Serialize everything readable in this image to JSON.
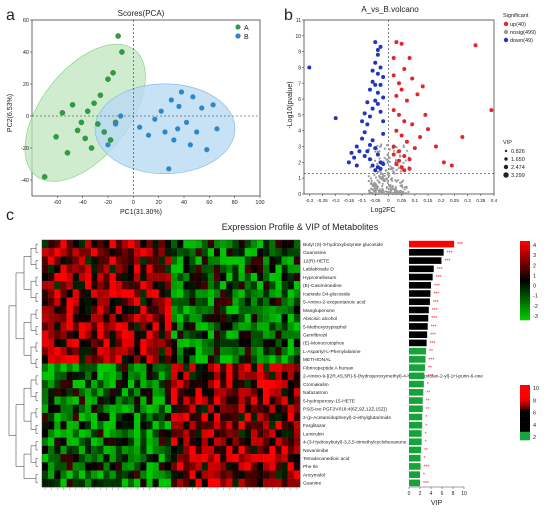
{
  "panel_labels": {
    "a": "a",
    "b": "b",
    "c": "c"
  },
  "chart_data": [
    {
      "type": "scatter",
      "panel": "a",
      "title": "Scores(PCA)",
      "xlabel": "PC1(31.30%)",
      "ylabel": "PC2(6.53%)",
      "xlim": [
        -80,
        100
      ],
      "ylim": [
        -50,
        60
      ],
      "xticks": [
        -60,
        -40,
        -20,
        0,
        20,
        40,
        60,
        80,
        100
      ],
      "yticks": [
        -40,
        -20,
        0,
        20,
        40,
        60
      ],
      "legend": {
        "placement": "top-right",
        "entries": [
          "A",
          "B"
        ]
      },
      "colors": {
        "A": "#2e9e44",
        "B": "#2f86c8",
        "A_fill": "#bfe6bf",
        "B_fill": "#b9daf3"
      },
      "series": [
        {
          "name": "A",
          "points": [
            [
              -70,
              -38
            ],
            [
              -61,
              -13
            ],
            [
              -56,
              2
            ],
            [
              -52,
              -23
            ],
            [
              -48,
              7
            ],
            [
              -44,
              -9
            ],
            [
              -41,
              -4
            ],
            [
              -38,
              -14
            ],
            [
              -36,
              3
            ],
            [
              -33,
              -20
            ],
            [
              -31,
              8
            ],
            [
              -28,
              -5
            ],
            [
              -26,
              13
            ],
            [
              -23,
              -10
            ],
            [
              -20,
              23
            ],
            [
              -18,
              -15
            ],
            [
              -16,
              27
            ],
            [
              -14,
              -4
            ],
            [
              -12,
              50
            ],
            [
              -9,
              40
            ]
          ]
        },
        {
          "name": "B",
          "points": [
            [
              -20,
              -18
            ],
            [
              -14,
              -5
            ],
            [
              -10,
              0
            ],
            [
              5,
              -7
            ],
            [
              12,
              -12
            ],
            [
              17,
              -2
            ],
            [
              22,
              3
            ],
            [
              25,
              -10
            ],
            [
              28,
              -33
            ],
            [
              30,
              10
            ],
            [
              32,
              -15
            ],
            [
              35,
              -8
            ],
            [
              36,
              6
            ],
            [
              38,
              15
            ],
            [
              42,
              -4
            ],
            [
              45,
              -18
            ],
            [
              47,
              12
            ],
            [
              50,
              -10
            ],
            [
              54,
              5
            ],
            [
              58,
              -21
            ],
            [
              63,
              7
            ],
            [
              66,
              -8
            ]
          ]
        }
      ]
    },
    {
      "type": "scatter",
      "panel": "b",
      "title": "A_vs_B.volcano",
      "xlabel": "Log2FC",
      "ylabel": "-Log10(pvalue)",
      "xlim": [
        -0.32,
        0.4
      ],
      "ylim": [
        0,
        11
      ],
      "xticks": [
        -0.3,
        -0.25,
        -0.2,
        -0.15,
        -0.1,
        -0.05,
        0,
        0.05,
        0.1,
        0.15,
        0.2,
        0.25,
        0.3,
        0.35,
        0.4
      ],
      "xtick_labels": [
        "-0.3",
        "-0.25",
        "-0.2",
        "-0.15",
        "-0.1",
        "-0.05",
        "0",
        "0.05",
        "0.1",
        "0.15",
        "0.2",
        "0.25",
        "0.3",
        "0.35",
        "0.4"
      ],
      "yticks": [
        0,
        1,
        2,
        3,
        4,
        5,
        6,
        7,
        8,
        9,
        10,
        11
      ],
      "threshold_y": 1.3,
      "threshold_x": 0,
      "legend": {
        "title": "Significant",
        "entries": [
          "up(40)",
          "nosig(499)",
          "down(49)"
        ],
        "colors": {
          "up": "#e3262b",
          "nosig": "#9a9a9a",
          "down": "#2034c0"
        },
        "size_title": "VIP",
        "size_entries": [
          "0.826",
          "1.650",
          "2.474",
          "3.299"
        ]
      },
      "up_points": [
        [
          0.02,
          8.6
        ],
        [
          0.03,
          9.6
        ],
        [
          0.05,
          9.5
        ],
        [
          0.06,
          7.9
        ],
        [
          0.02,
          7.5
        ],
        [
          0.04,
          7.0
        ],
        [
          0.08,
          8.6
        ],
        [
          0.03,
          6.2
        ],
        [
          0.05,
          6.6
        ],
        [
          0.07,
          5.9
        ],
        [
          0.02,
          5.3
        ],
        [
          0.04,
          5.0
        ],
        [
          0.06,
          4.6
        ],
        [
          0.09,
          4.4
        ],
        [
          0.03,
          4.0
        ],
        [
          0.05,
          3.7
        ],
        [
          0.07,
          3.3
        ],
        [
          0.02,
          3.0
        ],
        [
          0.04,
          2.7
        ],
        [
          0.06,
          2.4
        ],
        [
          0.08,
          2.2
        ],
        [
          0.03,
          1.9
        ],
        [
          0.05,
          1.7
        ],
        [
          0.1,
          2.9
        ],
        [
          0.12,
          3.6
        ],
        [
          0.15,
          4.1
        ],
        [
          0.18,
          3.0
        ],
        [
          0.21,
          2.0
        ],
        [
          0.24,
          1.8
        ],
        [
          0.28,
          3.6
        ],
        [
          0.33,
          9.4
        ],
        [
          0.39,
          5.3
        ],
        [
          0.11,
          6.3
        ],
        [
          0.13,
          6.8
        ],
        [
          0.09,
          7.3
        ],
        [
          0.14,
          5.0
        ],
        [
          0.02,
          2.5
        ],
        [
          0.04,
          2.1
        ],
        [
          0.06,
          1.5
        ],
        [
          0.08,
          1.6
        ]
      ],
      "down_points": [
        [
          -0.3,
          8.0
        ],
        [
          -0.2,
          4.8
        ],
        [
          -0.14,
          2.6
        ],
        [
          -0.12,
          3.0
        ],
        [
          -0.1,
          3.5
        ],
        [
          -0.09,
          3.9
        ],
        [
          -0.08,
          4.4
        ],
        [
          -0.07,
          4.9
        ],
        [
          -0.06,
          5.4
        ],
        [
          -0.05,
          5.9
        ],
        [
          -0.04,
          6.4
        ],
        [
          -0.03,
          6.9
        ],
        [
          -0.02,
          7.4
        ],
        [
          -0.06,
          7.8
        ],
        [
          -0.05,
          8.3
        ],
        [
          -0.04,
          8.8
        ],
        [
          -0.03,
          9.3
        ],
        [
          -0.05,
          9.6
        ],
        [
          -0.04,
          9.1
        ],
        [
          -0.07,
          6.6
        ],
        [
          -0.08,
          5.8
        ],
        [
          -0.09,
          5.1
        ],
        [
          -0.1,
          4.6
        ],
        [
          -0.06,
          3.4
        ],
        [
          -0.05,
          2.9
        ],
        [
          -0.04,
          2.5
        ],
        [
          -0.03,
          2.0
        ],
        [
          -0.07,
          2.2
        ],
        [
          -0.08,
          2.7
        ],
        [
          -0.02,
          3.8
        ],
        [
          -0.02,
          4.6
        ],
        [
          -0.03,
          5.2
        ],
        [
          -0.04,
          5.7
        ],
        [
          -0.02,
          6.1
        ],
        [
          -0.05,
          6.9
        ],
        [
          -0.06,
          7.1
        ],
        [
          -0.04,
          7.6
        ],
        [
          -0.03,
          8.0
        ],
        [
          -0.07,
          3.1
        ],
        [
          -0.09,
          2.4
        ],
        [
          -0.11,
          2.7
        ],
        [
          -0.13,
          2.3
        ],
        [
          -0.15,
          2.0
        ],
        [
          -0.12,
          1.8
        ],
        [
          -0.03,
          1.6
        ],
        [
          -0.02,
          1.9
        ],
        [
          -0.04,
          1.7
        ],
        [
          -0.05,
          1.5
        ],
        [
          -0.06,
          1.8
        ]
      ]
    },
    {
      "type": "heatmap",
      "panel": "c",
      "title": "Expression Profile & VIP of Metabolites",
      "rows": [
        "Butyl (S)-3-hydroxybutyrate glucoside",
        "Guanosine",
        "12(R)-HETE",
        "Lablaboside D",
        "Hypromellosum",
        "(E)-Casimiroedine",
        "Icariside D4-glucoside",
        "5-Amino-2-oxopentanoic acid",
        "Manglupenone",
        "Abscisic alcohol",
        "5-Methoxytryptophol",
        "Gemfibrozil",
        "(E)-Monocrotophos",
        "L-Aspartyl-L-Phenylalanine",
        "METHIONAL",
        "Fibrinopeptide A human",
        "2-Amino-9-[(2R,4S,5R)-5-(hydroperoxymethyl)-4-hydroxyoxolan-2-yl]-1H-purin-6-one",
        "Cromakalim",
        "Nafazatrom",
        "5-hydroperoxy-15-HETE",
        "PS(5-iso PGF2VI/18:4(6Z,9Z,12Z,15Z))",
        "2-(p-Acetamidophenyl)-2-ethylglutarimide",
        "Farglitazar",
        "Lumirubin",
        "4-(3-Hydroxybutyl)-3,3,5-trimethylcyclohexanone",
        "Nevanimibe",
        "Tetradecanedioic acid",
        "Phe Ile",
        "Ancymidol",
        "Guanine"
      ],
      "n_samples": 42,
      "expression_colorbar": {
        "ticks": [
          "4",
          "3",
          "2",
          "1",
          "0",
          "-1",
          "-2",
          "-3"
        ],
        "colors": [
          "#ff0000",
          "#000000",
          "#00c000"
        ]
      },
      "vip": [
        8.2,
        6.3,
        5.9,
        4.5,
        4.3,
        4.0,
        3.9,
        3.8,
        3.6,
        3.5,
        3.4,
        3.3,
        3.2,
        3.1,
        3.0,
        2.9,
        2.8,
        2.7,
        2.6,
        2.5,
        2.5,
        2.4,
        2.4,
        2.3,
        2.3,
        2.2,
        2.1,
        2.1,
        2.0,
        2.0
      ],
      "significance": [
        "***",
        "***",
        "***",
        "***",
        "***",
        "***",
        "***",
        "***",
        "***",
        "***",
        "***",
        "***",
        "***",
        "**",
        "***",
        "**",
        "***",
        "*",
        "**",
        "**",
        "**",
        "*",
        "*",
        "*",
        "*",
        "**",
        "*",
        "***",
        "*",
        "***"
      ],
      "vip_axis": {
        "label": "VIP",
        "ticks": [
          0,
          2,
          4,
          6,
          8,
          10
        ],
        "tick_labels": [
          "0",
          "2",
          "4",
          "6",
          "8",
          "10"
        ]
      },
      "vip_colorbar": {
        "ticks": [
          "10",
          "8",
          "6",
          "4",
          "2"
        ],
        "colors": [
          "#ff0000",
          "#000000",
          "#00c000"
        ]
      }
    }
  ]
}
